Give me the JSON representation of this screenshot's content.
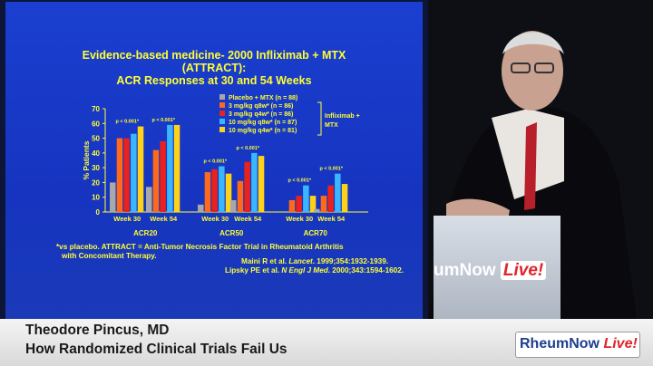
{
  "slide": {
    "title_line1": "Evidence-based medicine- 2000 Infliximab + MTX",
    "title_line2": "(ATTRACT):",
    "title_line3": "ACR Responses at 30 and 54 Weeks"
  },
  "chart_data": {
    "type": "bar",
    "ylabel": "% Patients",
    "ylim": [
      0,
      70
    ],
    "yticks": [
      0,
      10,
      20,
      30,
      40,
      50,
      60,
      70
    ],
    "groups": [
      {
        "name": "ACR20",
        "timepoints": [
          {
            "label": "Week 30",
            "pvalue": "p < 0.001*",
            "values": [
              20,
              50,
              50,
              53,
              58
            ]
          },
          {
            "label": "Week 54",
            "pvalue": "p < 0.001*",
            "values": [
              17,
              42,
              48,
              59,
              59
            ]
          }
        ]
      },
      {
        "name": "ACR50",
        "timepoints": [
          {
            "label": "Week 30",
            "pvalue": "p < 0.001*",
            "values": [
              5,
              27,
              29,
              31,
              26
            ]
          },
          {
            "label": "Week 54",
            "pvalue": "p < 0.001*",
            "values": [
              8,
              21,
              34,
              40,
              38
            ]
          }
        ]
      },
      {
        "name": "ACR70",
        "timepoints": [
          {
            "label": "Week 30",
            "pvalue": "p < 0.001*",
            "values": [
              0,
              8,
              11,
              18,
              11
            ]
          },
          {
            "label": "Week 54",
            "pvalue": "p < 0.001*",
            "values": [
              2,
              11,
              18,
              26,
              19
            ]
          }
        ]
      }
    ],
    "series": [
      {
        "name": "Placebo + MTX (n = 88)",
        "color": "#a8a8a8"
      },
      {
        "name": "3 mg/kg q8w* (n = 86)",
        "color": "#ff6a1a"
      },
      {
        "name": "3 mg/kg q4w* (n = 86)",
        "color": "#e8221e"
      },
      {
        "name": "10 mg/kg q8w* (n = 87)",
        "color": "#39b6ff"
      },
      {
        "name": "10 mg/kg q4w* (n = 81)",
        "color": "#ffd21a"
      }
    ],
    "bracket_label_line1": "Infliximab +",
    "bracket_label_line2": "MTX",
    "legend_position": "top-right"
  },
  "notes": {
    "footnote_line1": "*vs placebo.    ATTRACT = Anti-Tumor Necrosis Factor Trial in Rheumatoid Arthritis",
    "footnote_line2": "with Concomitant Therapy.",
    "ref1_authors": "Maini R et al. ",
    "ref1_journal": "Lancet",
    "ref1_rest": ". 1999;354:1932-1939.",
    "ref2_authors": "Lipsky PE et al. ",
    "ref2_journal": "N Engl J Med",
    "ref2_rest": ". 2000;343:1594-1602."
  },
  "podium": {
    "brand_main": "umNow ",
    "brand_live": "Live!"
  },
  "lower_third": {
    "speaker_name": "Theodore Pincus, MD",
    "talk_title": "How Randomized Clinical Trials Fail Us",
    "brand_main": "RheumNow ",
    "brand_live": "Live!"
  },
  "colors": {
    "slide_bg": "#1634c0",
    "slide_text": "#ffff33",
    "brand_blue": "#1c3f8f",
    "brand_red": "#e0242b"
  }
}
